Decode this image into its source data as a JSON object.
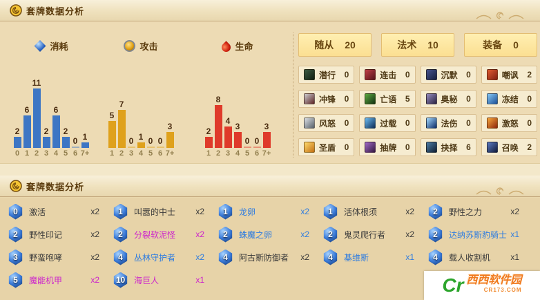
{
  "header1": {
    "title": "套牌数据分析"
  },
  "header2": {
    "title": "套牌数据分析"
  },
  "stats": [
    {
      "label": "随从",
      "value": "20"
    },
    {
      "label": "法术",
      "value": "10"
    },
    {
      "label": "装备",
      "value": "0"
    }
  ],
  "keywords": [
    {
      "label": "潜行",
      "value": "0",
      "icon": "stealth-icon",
      "c1": "#3d5c42",
      "c2": "#101f12"
    },
    {
      "label": "连击",
      "value": "0",
      "icon": "combo-icon",
      "c1": "#c04048",
      "c2": "#58141a"
    },
    {
      "label": "沉默",
      "value": "0",
      "icon": "silence-icon",
      "c1": "#47548e",
      "c2": "#161f3e"
    },
    {
      "label": "嘲讽",
      "value": "2",
      "icon": "taunt-icon",
      "c1": "#e05c30",
      "c2": "#801f10"
    },
    {
      "label": "冲锋",
      "value": "0",
      "icon": "charge-icon",
      "c1": "#cdced2",
      "c2": "#5c2424"
    },
    {
      "label": "亡语",
      "value": "5",
      "icon": "deathrattle-icon",
      "c1": "#5caa40",
      "c2": "#133012"
    },
    {
      "label": "奥秘",
      "value": "0",
      "icon": "secret-icon",
      "c1": "#968cbe",
      "c2": "#2a2342"
    },
    {
      "label": "冻结",
      "value": "0",
      "icon": "freeze-icon",
      "c1": "#86c9f6",
      "c2": "#1c4f96"
    },
    {
      "label": "风怒",
      "value": "0",
      "icon": "windfury-icon",
      "c1": "#dde1e6",
      "c2": "#566068"
    },
    {
      "label": "过载",
      "value": "0",
      "icon": "overload-icon",
      "c1": "#6cbcf2",
      "c2": "#0c2c55"
    },
    {
      "label": "法伤",
      "value": "0",
      "icon": "spell-damage-icon",
      "c1": "#a5dbff",
      "c2": "#0b2a66"
    },
    {
      "label": "激怒",
      "value": "0",
      "icon": "enrage-icon",
      "c1": "#f8a93e",
      "c2": "#8c2408"
    },
    {
      "label": "圣盾",
      "value": "0",
      "icon": "divine-shield-icon",
      "c1": "#ffdc6e",
      "c2": "#c26e12"
    },
    {
      "label": "抽牌",
      "value": "0",
      "icon": "card-draw-icon",
      "c1": "#a26cc8",
      "c2": "#341840"
    },
    {
      "label": "抉择",
      "value": "6",
      "icon": "choose-one-icon",
      "c1": "#4e7ea8",
      "c2": "#101d30"
    },
    {
      "label": "召唤",
      "value": "2",
      "icon": "summon-icon",
      "c1": "#5e7cc4",
      "c2": "#101b3a"
    }
  ],
  "chart_data": [
    {
      "type": "bar",
      "id": "mana-cost",
      "title": "消耗",
      "icon": "mana-gem-icon",
      "color": "#3d76c4",
      "categories": [
        "0",
        "1",
        "2",
        "3",
        "4",
        "5",
        "6",
        "7+"
      ],
      "values": [
        2,
        6,
        11,
        2,
        6,
        2,
        0,
        1
      ],
      "xlabel": "",
      "ylabel": "",
      "ylim": [
        0,
        11
      ],
      "grid": false,
      "legend": "none"
    },
    {
      "type": "bar",
      "id": "attack",
      "title": "攻击",
      "icon": "attack-icon",
      "color": "#dfa11c",
      "categories": [
        "1",
        "2",
        "3",
        "4",
        "5",
        "6",
        "7+"
      ],
      "values": [
        5,
        7,
        0,
        1,
        0,
        0,
        3
      ],
      "xlabel": "",
      "ylabel": "",
      "ylim": [
        0,
        11
      ],
      "grid": false,
      "legend": "none"
    },
    {
      "type": "bar",
      "id": "health",
      "title": "生命",
      "icon": "health-icon",
      "color": "#df3a2a",
      "categories": [
        "1",
        "2",
        "3",
        "4",
        "5",
        "6",
        "7+"
      ],
      "values": [
        2,
        8,
        4,
        3,
        0,
        0,
        3
      ],
      "xlabel": "",
      "ylabel": "",
      "ylim": [
        0,
        11
      ],
      "grid": false,
      "legend": "none"
    }
  ],
  "cards": {
    "rarity_colors": {
      "common": "#3a3a3a",
      "rare": "#2e7ce0",
      "epic": "#cc22cc"
    },
    "rows": [
      [
        {
          "cost": "0",
          "name": "激活",
          "count": "x2",
          "rarity": "common"
        },
        {
          "cost": "1",
          "name": "叫嚣的中士",
          "count": "x2",
          "rarity": "common"
        },
        {
          "cost": "1",
          "name": "龙卵",
          "count": "x2",
          "rarity": "rare"
        },
        {
          "cost": "1",
          "name": "活体根须",
          "count": "x2",
          "rarity": "common"
        },
        {
          "cost": "2",
          "name": "野性之力",
          "count": "x2",
          "rarity": "common"
        }
      ],
      [
        {
          "cost": "2",
          "name": "野性印记",
          "count": "x2",
          "rarity": "common"
        },
        {
          "cost": "2",
          "name": "分裂软泥怪",
          "count": "x2",
          "rarity": "epic"
        },
        {
          "cost": "2",
          "name": "蛛魔之卵",
          "count": "x2",
          "rarity": "rare"
        },
        {
          "cost": "2",
          "name": "鬼灵爬行者",
          "count": "x2",
          "rarity": "common"
        },
        {
          "cost": "2",
          "name": "达纳苏斯豹骑士",
          "count": "x1",
          "rarity": "rare"
        }
      ],
      [
        {
          "cost": "3",
          "name": "野蛮咆哮",
          "count": "x2",
          "rarity": "common"
        },
        {
          "cost": "4",
          "name": "丛林守护者",
          "count": "x2",
          "rarity": "rare"
        },
        {
          "cost": "4",
          "name": "阿古斯防御者",
          "count": "x2",
          "rarity": "common"
        },
        {
          "cost": "4",
          "name": "基维斯",
          "count": "x1",
          "rarity": "rare"
        },
        {
          "cost": "4",
          "name": "载人收割机",
          "count": "x1",
          "rarity": "common"
        }
      ],
      [
        {
          "cost": "5",
          "name": "魔能机甲",
          "count": "x2",
          "rarity": "epic"
        },
        {
          "cost": "10",
          "name": "海巨人",
          "count": "x1",
          "rarity": "epic"
        }
      ]
    ]
  },
  "watermark": {
    "logo_cr": "Cr",
    "site_name": "西西软件园",
    "site_url": "CR173.COM"
  }
}
